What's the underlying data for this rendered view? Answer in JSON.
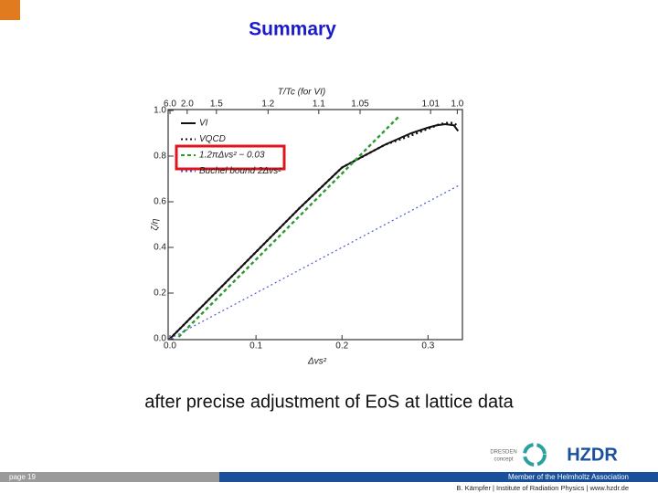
{
  "slide": {
    "title": "Summary",
    "caption": "after precise adjustment of EoS at lattice data"
  },
  "footer": {
    "page": "page 19",
    "member": "Member of the Helmholtz Association",
    "credit": "B. Kämpfer  |  Institute of Radiation Physics  |  www.hzdr.de"
  },
  "logos": {
    "dresden": "DRESDEN",
    "concept": "concept",
    "hzdr": "HZDR"
  },
  "chart_data": {
    "type": "line",
    "xlabel": "Δvs²",
    "ylabel": "ζ/η",
    "x2label": "T/Tc (for VI)",
    "xlim": [
      0,
      0.34
    ],
    "ylim": [
      0,
      1.0
    ],
    "xticks": [
      {
        "value": 0,
        "label": "0.0"
      },
      0.1,
      0.2,
      0.3
    ],
    "yticks": [
      {
        "value": 0,
        "label": "0.0"
      },
      0.2,
      0.4,
      0.6,
      0.8,
      {
        "value": 1.0,
        "label": "1.0"
      }
    ],
    "x2ticks": [
      {
        "value": 6.0,
        "label": "6.0"
      },
      {
        "value": 2.0,
        "label": "2.0"
      },
      1.5,
      1.2,
      1.1,
      1.05,
      1.01,
      {
        "value": 1.0,
        "label": "1.0"
      }
    ],
    "x2tick_positions": [
      0,
      0.02,
      0.054,
      0.114,
      0.173,
      0.221,
      0.303,
      0.334
    ],
    "series": [
      {
        "name": "VI",
        "color": "#111111",
        "linestyle": "solid",
        "x": [
          0,
          0.05,
          0.1,
          0.15,
          0.2,
          0.25,
          0.28,
          0.3,
          0.31,
          0.32,
          0.33,
          0.335
        ],
        "values": [
          0,
          0.19,
          0.38,
          0.57,
          0.75,
          0.85,
          0.9,
          0.925,
          0.935,
          0.94,
          0.935,
          0.91
        ]
      },
      {
        "name": "VQCD",
        "color": "#111111",
        "linestyle": "dotted",
        "x": [
          0,
          0.05,
          0.1,
          0.15,
          0.2,
          0.25,
          0.28,
          0.3,
          0.31,
          0.32,
          0.33,
          0.335
        ],
        "values": [
          0,
          0.19,
          0.38,
          0.57,
          0.75,
          0.85,
          0.89,
          0.92,
          0.935,
          0.945,
          0.945,
          0.93
        ]
      },
      {
        "name": "1.2πΔvs² − 0.03",
        "color": "#2e9a2e",
        "linestyle": "dashed",
        "x": [
          0.01,
          0.1,
          0.2,
          0.267
        ],
        "values": [
          0.008,
          0.347,
          0.724,
          0.977
        ]
      },
      {
        "name": "Buchel bound 2Δvs²",
        "color": "#4a5ad8",
        "linestyle": "dotted",
        "x": [
          0,
          0.1,
          0.2,
          0.335
        ],
        "values": [
          0,
          0.2,
          0.4,
          0.67
        ]
      }
    ]
  }
}
